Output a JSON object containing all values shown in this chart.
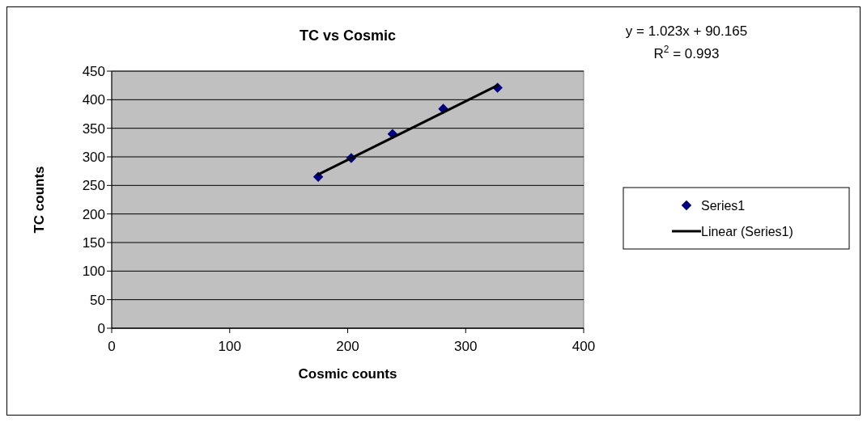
{
  "chart_data": {
    "type": "scatter",
    "title": "TC vs Cosmic",
    "xlabel": "Cosmic counts",
    "ylabel": "TC counts",
    "annotations": [
      "y = 1.023x + 90.165",
      "R$^{2}$ = 0.993"
    ],
    "xlim": [
      0,
      400
    ],
    "xticks": [
      0,
      100,
      200,
      300,
      400
    ],
    "ylim": [
      0,
      450
    ],
    "yticks": [
      0,
      50,
      100,
      150,
      200,
      250,
      300,
      350,
      400,
      450
    ],
    "grid": "y",
    "legend": "right",
    "series": [
      {
        "name": "Series1",
        "marker": "diamond",
        "color": "#000080",
        "x": [
          175,
          203,
          238,
          281,
          327
        ],
        "values": [
          265,
          298,
          340,
          384,
          421
        ]
      },
      {
        "name": "Linear (Series1)",
        "type": "line",
        "color": "#000000",
        "x": [
          175,
          327
        ],
        "values": [
          269,
          425
        ],
        "line_style": "solid"
      }
    ]
  }
}
